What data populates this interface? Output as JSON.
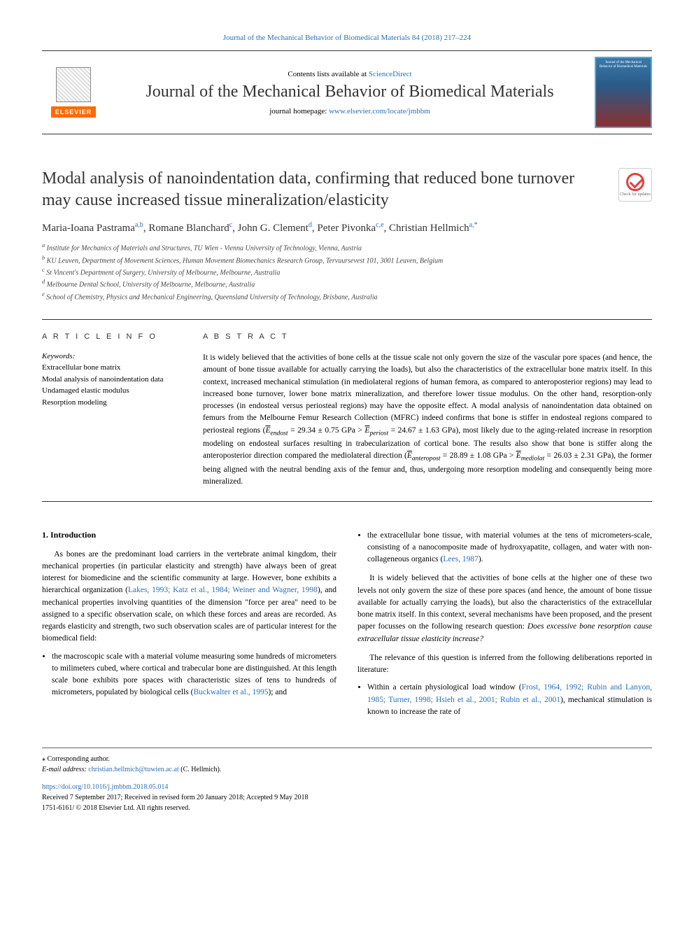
{
  "top_reference": {
    "prefix": "Journal of the Mechanical Behavior of Biomedical Materials 84 (2018) 217–224"
  },
  "header": {
    "contents_prefix": "Contents lists available at ",
    "contents_link": "ScienceDirect",
    "journal_name": "Journal of the Mechanical Behavior of Biomedical Materials",
    "homepage_prefix": "journal homepage: ",
    "homepage_link": "www.elsevier.com/locate/jmbbm",
    "publisher_logo_text": "ELSEVIER",
    "cover_text": "Journal of the Mechanical Behavior of Biomedical Materials"
  },
  "article": {
    "title": "Modal analysis of nanoindentation data, confirming that reduced bone turnover may cause increased tissue mineralization/elasticity",
    "check_badge_text": "Check for updates",
    "authors_html": "Maria-Ioana Pastrama<sup>a,b</sup>, Romane Blanchard<sup>c</sup>, John G. Clement<sup>d</sup>, Peter Pivonka<sup>c,e</sup>, Christian Hellmich<sup>a,*</sup>",
    "affiliations": [
      "a Institute for Mechanics of Materials and Structures, TU Wien - Vienna University of Technology, Vienna, Austria",
      "b KU Leuven, Department of Movement Sciences, Human Movement Biomechanics Research Group, Tervuursevest 101, 3001 Leuven, Belgium",
      "c St Vincent's Department of Surgery, University of Melbourne, Melbourne, Australia",
      "d Melbourne Dental School, University of Melbourne, Melbourne, Australia",
      "e School of Chemistry, Physics and Mechanical Engineering, Queensland University of Technology, Brisbane, Australia"
    ]
  },
  "info": {
    "heading": "A R T I C L E  I N F O",
    "keywords_label": "Keywords:",
    "keywords": [
      "Extracellular bone matrix",
      "Modal analysis of nanoindentation data",
      "Undamaged elastic modulus",
      "Resorption modeling"
    ]
  },
  "abstract": {
    "heading": "A B S T R A C T",
    "text_parts": {
      "p1": "It is widely believed that the activities of bone cells at the tissue scale not only govern the size of the vascular pore spaces (and hence, the amount of bone tissue available for actually carrying the loads), but also the characteristics of the extracellular bone matrix itself. In this context, increased mechanical stimulation (in mediolateral regions of human femora, as compared to anteroposterior regions) may lead to increased bone turnover, lower bone matrix mineralization, and therefore lower tissue modulus. On the other hand, resorption-only processes (in endosteal versus periosteal regions) may have the opposite effect. A modal analysis of nanoindentation data obtained on femurs from the Melbourne Femur Research Collection (MFRC) indeed confirms that bone is stiffer in endosteal regions compared to periosteal regions (",
      "e_endost_val": " = 29.34 ± 0.75 GPa > ",
      "e_periost_val": " = 24.67 ± 1.63 GPa), most likely due to the aging-related increase in resorption modeling on endosteal surfaces resulting in trabecularization of cortical bone. The results also show that bone is stiffer along the anteroposterior direction compared the mediolateral direction (",
      "e_anteropost_val": " = 28.89 ± 1.08 GPa > ",
      "e_mediolat_val": " = 26.03 ± 2.31 GPa), the former being aligned with the neutral bending axis of the femur and, thus, undergoing more resorption modeling and consequently being more mineralized."
    },
    "symbols": {
      "e_endost": "E",
      "e_endost_sub": "endost",
      "e_periost": "E",
      "e_periost_sub": "periost",
      "e_anteropost": "E",
      "e_anteropost_sub": "anteropost",
      "e_mediolat": "E",
      "e_mediolat_sub": "mediolat"
    }
  },
  "body": {
    "intro_heading": "1. Introduction",
    "col1": {
      "p1_prefix": "As bones are the predominant load carriers in the vertebrate animal kingdom, their mechanical properties (in particular elasticity and strength) have always been of great interest for biomedicine and the scientific community at large. However, bone exhibits a hierarchical organization (",
      "p1_ref1": "Lakes, 1993; Katz et al., 1984; Weiner and Wagner, 1998",
      "p1_suffix": "), and mechanical properties involving quantities of the dimension \"force per area\" need to be assigned to a specific observation scale, on which these forces and areas are recorded. As regards elasticity and strength, two such observation scales are of particular interest for the biomedical field:",
      "bullet1_prefix": "the macroscopic scale with a material volume measuring some hundreds of micrometers to milimeters cubed, where cortical and trabecular bone are distinguished. At this length scale bone exhibits pore spaces with characteristic sizes of tens to hundreds of micrometers, populated by biological cells (",
      "bullet1_ref": "Buckwalter et al., 1995",
      "bullet1_suffix": "); and"
    },
    "col2": {
      "bullet2_prefix": "the extracellular bone tissue, with material volumes at the tens of micrometers-scale, consisting of a nanocomposite made of hydroxyapatite, collagen, and water with non-collageneous organics (",
      "bullet2_ref": "Lees, 1987",
      "bullet2_suffix": ").",
      "p2": "It is widely believed that the activities of bone cells at the higher one of these two levels not only govern the size of these pore spaces (and hence, the amount of bone tissue available for actually carrying the loads), but also the characteristics of the extracellular bone matrix itself. In this context, several mechanisms have been proposed, and the present paper focusses on the following research question: ",
      "p2_italic": "Does excessive bone resorption cause extracellular tissue elasticity increase?",
      "p3": "The relevance of this question is inferred from the following deliberations reported in literature:",
      "bullet3_prefix": "Within a certain physiological load window (",
      "bullet3_ref": "Frost, 1964, 1992; Rubin and Lanyon, 1985; Turner, 1998; Hsieh et al., 2001; Rubin et al., 2001",
      "bullet3_suffix": "), mechanical stimulation is known to increase the rate of"
    }
  },
  "footer": {
    "corresp_label": "⁎ Corresponding author.",
    "email_label": "E-mail address: ",
    "email": "christian.hellmich@tuwien.ac.at",
    "email_suffix": " (C. Hellmich).",
    "doi": "https://doi.org/10.1016/j.jmbbm.2018.05.014",
    "received": "Received 7 September 2017; Received in revised form 20 January 2018; Accepted 9 May 2018",
    "copyright": "1751-6161/ © 2018 Elsevier Ltd. All rights reserved."
  },
  "colors": {
    "link": "#2a6eb8",
    "elsevier_orange": "#ff6a00",
    "rule": "#333333"
  },
  "typography": {
    "title_fontsize": 24,
    "journal_fontsize": 24,
    "authors_fontsize": 15,
    "body_fontsize": 11.5,
    "abstract_fontsize": 11.5,
    "small_fontsize": 11,
    "tiny_fontsize": 10
  }
}
